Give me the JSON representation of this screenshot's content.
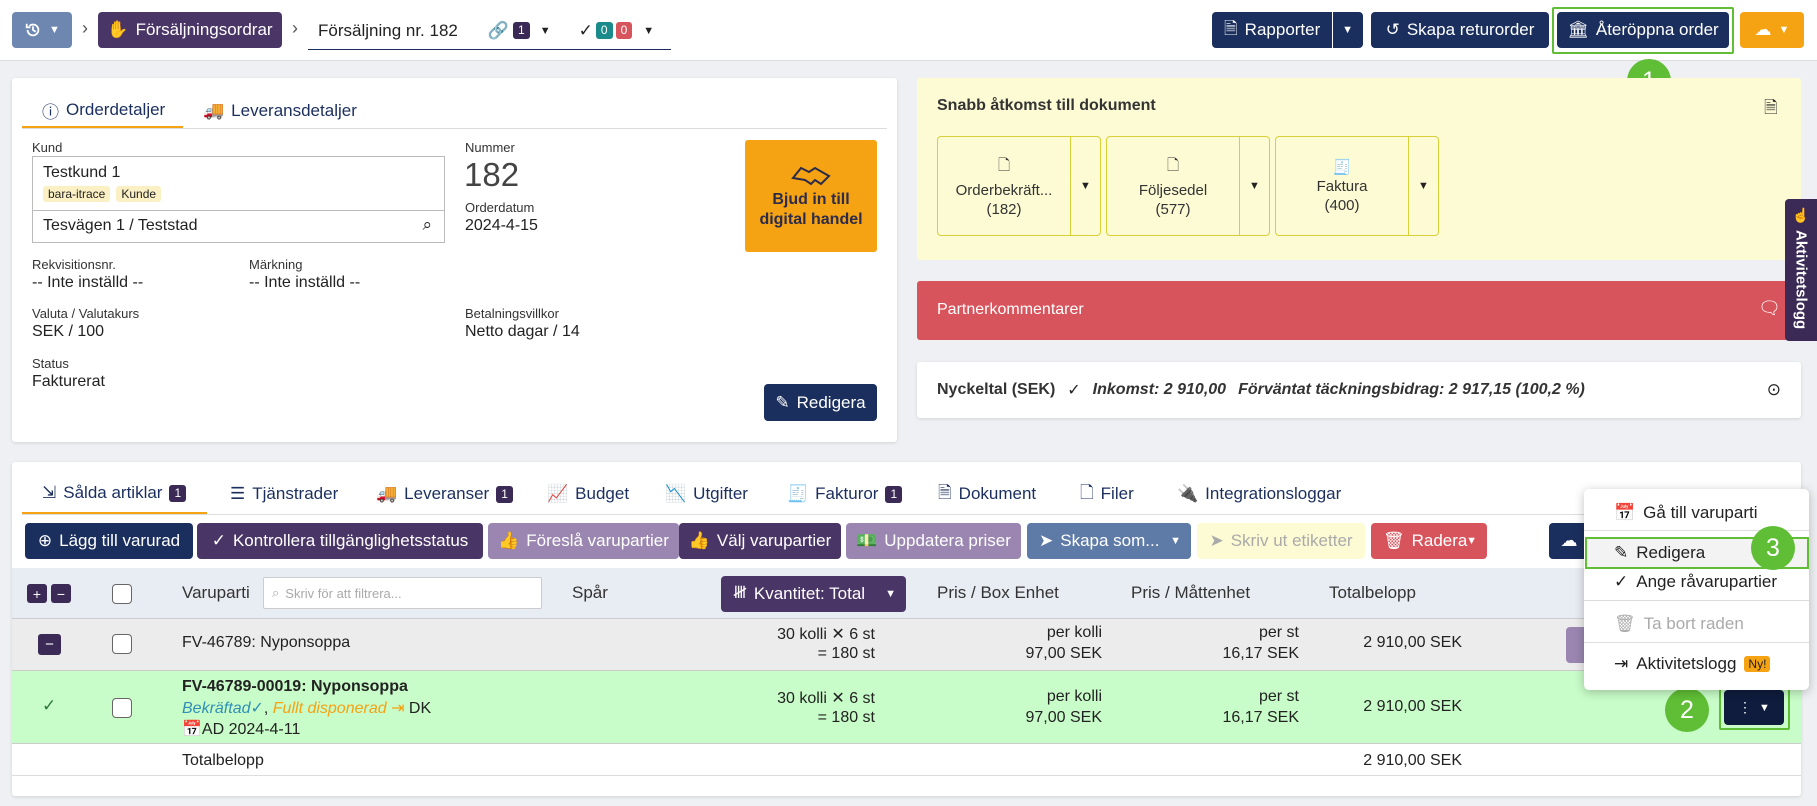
{
  "topbar": {
    "breadcrumb_sales_orders": "Försäljningsordrar",
    "breadcrumb_current": "Försäljning nr. 182",
    "link_count": "1",
    "check_count_a": "0",
    "check_count_b": "0",
    "reports_label": "Rapporter",
    "return_order_label": "Skapa returorder",
    "reopen_label": "Återöppna order"
  },
  "order_details": {
    "tab_details": "Orderdetaljer",
    "tab_delivery": "Leveransdetaljer",
    "customer_label": "Kund",
    "customer_name": "Testkund 1",
    "tag_1": "bara-itrace",
    "tag_2": "Kunde",
    "address": "Tesvägen 1 / Teststad",
    "number_label": "Nummer",
    "number": "182",
    "order_date_label": "Orderdatum",
    "order_date": "2024-4-15",
    "invite_label": "Bjud in till digital handel",
    "requisition_label": "Rekvisitionsnr.",
    "requisition_value": "-- Inte inställd --",
    "marking_label": "Märkning",
    "marking_value": "-- Inte inställd --",
    "currency_label": "Valuta / Valutakurs",
    "currency_value": "SEK / 100",
    "payment_label": "Betalningsvillkor",
    "payment_value": "Netto dagar / 14",
    "status_label": "Status",
    "status_value": "Fakturerat",
    "edit_label": "Redigera"
  },
  "quick_docs": {
    "title": "Snabb åtkomst till dokument",
    "docs": [
      {
        "name": "Orderbekräft...",
        "count": "(182)"
      },
      {
        "name": "Följesedel",
        "count": "(577)"
      },
      {
        "name": "Faktura",
        "count": "(400)"
      }
    ]
  },
  "partner": {
    "title": "Partnerkommentarer"
  },
  "kpi": {
    "title": "Nyckeltal (SEK)",
    "income": "Inkomst: 2 910,00",
    "expected": "Förväntat täckningsbidrag: 2 917,15 (100,2 %)"
  },
  "activity_log_label": "Aktivitetslogg",
  "lower_tabs": [
    {
      "label": "Sålda artiklar",
      "count": "1"
    },
    {
      "label": "Tjänstrader"
    },
    {
      "label": "Leveranser",
      "count": "1"
    },
    {
      "label": "Budget"
    },
    {
      "label": "Utgifter"
    },
    {
      "label": "Fakturor",
      "count": "1"
    },
    {
      "label": "Dokument"
    },
    {
      "label": "Filer"
    },
    {
      "label": "Integrationsloggar"
    }
  ],
  "toolbar": {
    "add_row": "Lägg till varurad",
    "check_availability": "Kontrollera tillgänglighetsstatus",
    "suggest_batches": "Föreslå varupartier",
    "choose_batches": "Välj varupartier",
    "update_prices": "Uppdatera priser",
    "create_as": "Skapa som...",
    "print_labels": "Skriv ut etiketter",
    "delete": "Radera"
  },
  "table": {
    "col_batch": "Varuparti",
    "filter_placeholder": "Skriv för att filtrera...",
    "col_trace": "Spår",
    "quantity_label": "Kvantitet: Total",
    "col_price_box": "Pris / Box Enhet",
    "col_price_unit": "Pris / Måttenhet",
    "col_total": "Totalbelopp",
    "group_row": {
      "name": "FV-46789: Nyponsoppa",
      "qty_line1": "30 kolli ✕ 6 st",
      "qty_line2": "= 180 st",
      "price_box_1": "per kolli",
      "price_box_2": "97,00 SEK",
      "price_unit_1": "per st",
      "price_unit_2": "16,17 SEK",
      "total": "2 910,00 SEK"
    },
    "item_row": {
      "name": "FV-46789-00019: Nyponsoppa",
      "status_confirmed": "Bekräftad",
      "status_disposed": "Fullt disponerad",
      "status_dk": "DK",
      "date": "AD 2024-4-11",
      "qty_line1": "30 kolli ✕ 6 st",
      "qty_line2": "= 180 st",
      "price_box_1": "per kolli",
      "price_box_2": "97,00 SEK",
      "price_unit_1": "per st",
      "price_unit_2": "16,17 SEK",
      "total": "2 910,00 SEK"
    },
    "footer_label": "Totalbelopp",
    "footer_total": "2 910,00 SEK"
  },
  "context_menu": {
    "items": [
      {
        "label": "Gå till varuparti"
      },
      {
        "label": "Redigera"
      },
      {
        "label": "Ange råvarupartier"
      },
      {
        "label": "Ta bort raden"
      },
      {
        "label": "Aktivitetslogg",
        "badge": "Ny!"
      }
    ]
  },
  "callouts": [
    "1",
    "2",
    "3"
  ],
  "colors": {
    "navy": "#1b2f5e",
    "plum": "#4a3567",
    "accent_orange": "#f5a213",
    "partner_red": "#d8545d",
    "quick_docs_bg": "#fdfbd4",
    "highlight_row": "#c8fcc8",
    "callout_green": "#5fbe35"
  }
}
